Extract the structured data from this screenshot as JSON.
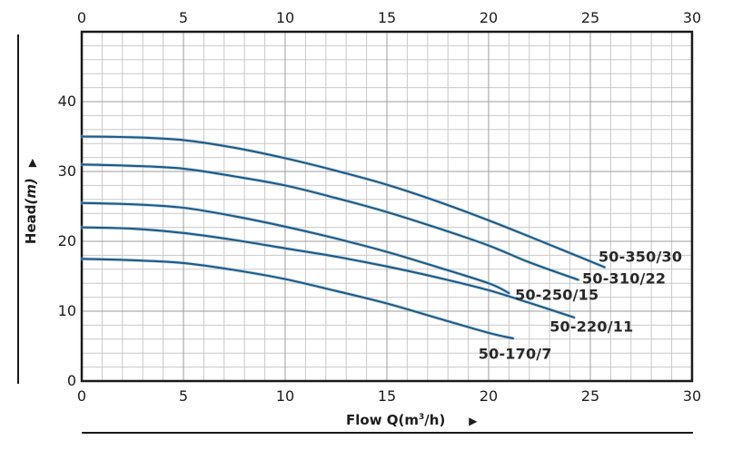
{
  "chart_data": {
    "type": "line",
    "title": "",
    "xlabel": "Flow Q(m3/h)",
    "ylabel": "Head(m)",
    "x_axis": {
      "min": 0,
      "max": 30,
      "ticks": [
        0,
        5,
        10,
        15,
        20,
        25,
        30
      ],
      "minor_step": 1,
      "shown": "top and bottom"
    },
    "y_axis": {
      "min": 0,
      "max": 50,
      "ticks": [
        0,
        10,
        20,
        30,
        40
      ],
      "minor_step": 2,
      "shown": "left"
    },
    "grid": "on",
    "legend_position": "labels at curve ends",
    "series": [
      {
        "name": "50-350/30",
        "x": [
          0,
          2.5,
          5,
          7.5,
          10,
          12.5,
          15,
          17.5,
          20,
          22.5,
          25.7
        ],
        "y": [
          35,
          34.9,
          34.5,
          33.4,
          31.9,
          30.1,
          28.1,
          25.7,
          23.0,
          20.1,
          16.3
        ],
        "label_anchor": [
          25.4,
          17.8
        ]
      },
      {
        "name": "50-310/22",
        "x": [
          0,
          2.5,
          5,
          7.5,
          10,
          12.5,
          15,
          17.5,
          20,
          22,
          24.4
        ],
        "y": [
          31,
          30.8,
          30.4,
          29.3,
          28.0,
          26.2,
          24.2,
          21.9,
          19.4,
          17.0,
          14.5
        ],
        "label_anchor": [
          24.6,
          14.7
        ]
      },
      {
        "name": "50-250/15",
        "x": [
          0,
          2.5,
          5,
          7.5,
          10,
          12.5,
          15,
          17.5,
          20,
          21
        ],
        "y": [
          25.5,
          25.3,
          24.8,
          23.6,
          22.1,
          20.4,
          18.5,
          16.3,
          14.0,
          12.6
        ],
        "label_anchor": [
          21.3,
          12.3
        ]
      },
      {
        "name": "50-220/11",
        "x": [
          0,
          2.5,
          5,
          7.5,
          10,
          12.5,
          15,
          17.5,
          20,
          22,
          24.2
        ],
        "y": [
          22,
          21.8,
          21.2,
          20.2,
          19.0,
          17.8,
          16.4,
          14.8,
          13.0,
          11.2,
          9.1
        ],
        "label_anchor": [
          23.0,
          7.8
        ]
      },
      {
        "name": "50-170/7",
        "x": [
          0,
          2.5,
          5,
          7.5,
          10,
          12.5,
          15,
          17.5,
          20,
          21.2
        ],
        "y": [
          17.5,
          17.3,
          16.9,
          15.9,
          14.6,
          12.9,
          11.1,
          9.0,
          6.9,
          6.1
        ],
        "label_anchor": [
          19.5,
          3.9
        ]
      }
    ]
  },
  "labels": {
    "y_title": {
      "main": "Head",
      "unit": "(m)",
      "arrow": "▶"
    },
    "x_title": {
      "main": "Flow Q(m",
      "sup": "3",
      "end": "/h)",
      "arrow": "▶"
    }
  },
  "colors": {
    "curve": "#1d5a85",
    "curve_halo": "#9dc1da",
    "grid_minor": "#c9c9c9",
    "grid_major": "#9d9d9d",
    "axis_border": "#1a1a1a",
    "tick_text": "#1d1d1d",
    "curve_label_text": "#292929"
  }
}
